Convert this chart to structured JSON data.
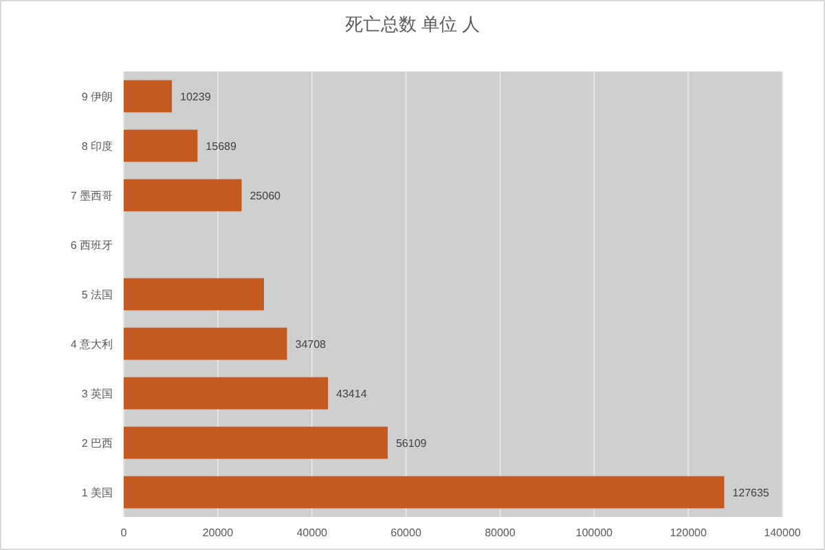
{
  "chart_data": {
    "type": "bar",
    "orientation": "horizontal",
    "title": "死亡总数 单位 人",
    "categories": [
      "9 伊朗",
      "8 印度",
      "7 墨西哥",
      "6 西班牙",
      "5 法国",
      "4 意大利",
      "3 英国",
      "2 巴西",
      "1 美国"
    ],
    "values": [
      10239,
      15689,
      25060,
      null,
      29800,
      34708,
      43414,
      56109,
      127635
    ],
    "value_labels": [
      "10239",
      "15689",
      "25060",
      null,
      null,
      "34708",
      "43414",
      "56109",
      "127635"
    ],
    "color": "#c55a20",
    "xlim": [
      0,
      140000
    ],
    "xticks": [
      0,
      20000,
      40000,
      60000,
      80000,
      100000,
      120000,
      140000
    ],
    "grid": "x"
  }
}
